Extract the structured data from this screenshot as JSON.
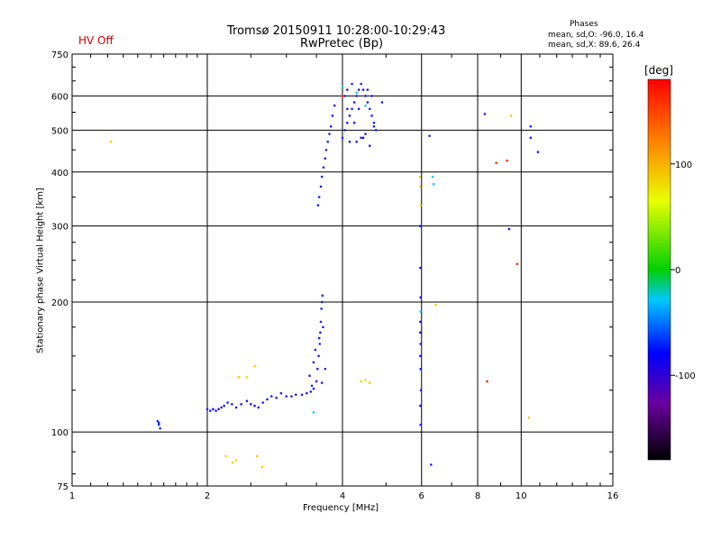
{
  "header": {
    "status": "HV Off",
    "title_line1": "Tromsø 20150911 10:28:00-10:29:43",
    "title_line2": "RwPretec (Bp)",
    "phases_title": "Phases",
    "phases_line1": "mean, sd,O: -96.0, 16.4",
    "phases_line2": "mean, sd,X:  89.6, 26.4"
  },
  "colors": {
    "status": "#cc0000",
    "blue": "#1a1aff",
    "cyan": "#00c8ff",
    "yellow": "#f0d000",
    "red": "#ff2000"
  },
  "chart_data": {
    "type": "scatter",
    "title": "Tromsø 20150911 10:28:00-10:29:43",
    "subtitle": "RwPretec (Bp)",
    "xlabel": "Frequency [MHz]",
    "ylabel": "Stationary phase Virtual Height [km]",
    "xscale": "log",
    "yscale": "log",
    "xlim": [
      1,
      16
    ],
    "ylim": [
      75,
      750
    ],
    "xticks": [
      1,
      2,
      4,
      6,
      8,
      10,
      16
    ],
    "xtick_labels": [
      "1",
      "2",
      "4",
      "6",
      "8",
      "10",
      "16"
    ],
    "yticks": [
      75,
      100,
      200,
      300,
      400,
      500,
      600,
      750
    ],
    "ytick_labels": [
      "75",
      "100",
      "200",
      "300",
      "400",
      "500",
      "600",
      "750"
    ],
    "grid": true,
    "colorbar": {
      "label": "[deg]",
      "range": [
        -180,
        180
      ],
      "ticks": [
        100,
        0,
        -100
      ],
      "tick_labels": [
        "100",
        "0",
        "-100"
      ]
    },
    "series": [
      {
        "color": "#1a1aff",
        "points": [
          [
            1.55,
            106
          ],
          [
            1.56,
            104
          ],
          [
            1.57,
            102
          ],
          [
            1.56,
            105
          ],
          [
            2.0,
            113
          ],
          [
            2.03,
            112
          ],
          [
            2.06,
            113
          ],
          [
            2.09,
            112
          ],
          [
            2.12,
            113
          ],
          [
            2.15,
            114
          ],
          [
            2.18,
            115
          ],
          [
            2.22,
            117
          ],
          [
            2.27,
            116
          ],
          [
            2.32,
            114
          ],
          [
            2.38,
            116
          ],
          [
            2.45,
            118
          ],
          [
            2.5,
            116
          ],
          [
            2.55,
            115
          ],
          [
            2.6,
            114
          ],
          [
            2.66,
            117
          ],
          [
            2.72,
            119
          ],
          [
            2.78,
            121
          ],
          [
            2.85,
            120
          ],
          [
            2.92,
            123
          ],
          [
            3.0,
            121
          ],
          [
            3.08,
            121
          ],
          [
            3.15,
            122
          ],
          [
            3.25,
            122
          ],
          [
            3.33,
            123
          ],
          [
            3.4,
            124
          ],
          [
            3.45,
            126
          ],
          [
            3.5,
            131
          ],
          [
            3.52,
            140
          ],
          [
            3.54,
            150
          ],
          [
            3.56,
            160
          ],
          [
            3.57,
            170
          ],
          [
            3.58,
            180
          ],
          [
            3.59,
            193
          ],
          [
            3.6,
            200
          ],
          [
            3.61,
            207
          ],
          [
            3.42,
            128
          ],
          [
            3.38,
            135
          ],
          [
            3.45,
            145
          ],
          [
            3.48,
            155
          ],
          [
            3.55,
            165
          ],
          [
            3.62,
            175
          ],
          [
            3.6,
            130
          ],
          [
            3.66,
            140
          ],
          [
            3.53,
            335
          ],
          [
            3.55,
            350
          ],
          [
            3.58,
            370
          ],
          [
            3.6,
            390
          ],
          [
            3.63,
            410
          ],
          [
            3.66,
            430
          ],
          [
            3.68,
            450
          ],
          [
            3.71,
            470
          ],
          [
            3.74,
            490
          ],
          [
            3.77,
            510
          ],
          [
            3.8,
            540
          ],
          [
            3.84,
            570
          ],
          [
            4.0,
            480
          ],
          [
            4.05,
            500
          ],
          [
            4.1,
            520
          ],
          [
            4.15,
            540
          ],
          [
            4.2,
            560
          ],
          [
            4.25,
            580
          ],
          [
            4.3,
            600
          ],
          [
            4.35,
            620
          ],
          [
            4.4,
            640
          ],
          [
            4.45,
            620
          ],
          [
            4.5,
            600
          ],
          [
            4.55,
            580
          ],
          [
            4.6,
            560
          ],
          [
            4.65,
            540
          ],
          [
            4.7,
            520
          ],
          [
            4.75,
            500
          ],
          [
            4.05,
            600
          ],
          [
            4.1,
            620
          ],
          [
            4.2,
            640
          ],
          [
            4.3,
            470
          ],
          [
            4.4,
            480
          ],
          [
            4.5,
            490
          ],
          [
            4.6,
            460
          ],
          [
            4.7,
            510
          ],
          [
            4.9,
            580
          ],
          [
            4.1,
            560
          ],
          [
            4.15,
            470
          ],
          [
            4.25,
            520
          ],
          [
            4.35,
            560
          ],
          [
            4.45,
            480
          ],
          [
            4.55,
            620
          ],
          [
            4.65,
            600
          ],
          [
            5.95,
            300
          ],
          [
            5.96,
            240
          ],
          [
            5.97,
            205
          ],
          [
            5.96,
            180
          ],
          [
            5.96,
            170
          ],
          [
            5.97,
            160
          ],
          [
            5.96,
            150
          ],
          [
            5.97,
            140
          ],
          [
            5.98,
            125
          ],
          [
            5.96,
            115
          ],
          [
            5.97,
            104
          ],
          [
            6.25,
            485
          ],
          [
            6.3,
            84
          ],
          [
            8.3,
            545
          ],
          [
            9.4,
            295
          ],
          [
            10.5,
            480
          ],
          [
            10.5,
            510
          ],
          [
            10.9,
            445
          ]
        ]
      },
      {
        "color": "#00c8ff",
        "points": [
          [
            3.45,
            111
          ],
          [
            5.97,
            190
          ],
          [
            6.35,
            390
          ],
          [
            6.38,
            375
          ],
          [
            4.0,
            630
          ],
          [
            4.3,
            610
          ],
          [
            4.5,
            570
          ]
        ]
      },
      {
        "color": "#f0d000",
        "points": [
          [
            1.22,
            470
          ],
          [
            2.2,
            88
          ],
          [
            2.28,
            85
          ],
          [
            2.32,
            86
          ],
          [
            2.35,
            134
          ],
          [
            2.45,
            134
          ],
          [
            2.55,
            142
          ],
          [
            2.58,
            88
          ],
          [
            2.65,
            83
          ],
          [
            4.4,
            131
          ],
          [
            4.5,
            132
          ],
          [
            4.6,
            130
          ],
          [
            5.95,
            390
          ],
          [
            5.96,
            370
          ],
          [
            5.97,
            335
          ],
          [
            6.45,
            197
          ],
          [
            9.5,
            540
          ],
          [
            10.4,
            108
          ]
        ]
      },
      {
        "color": "#ff2000",
        "points": [
          [
            8.4,
            131
          ],
          [
            8.8,
            420
          ],
          [
            9.3,
            425
          ],
          [
            9.8,
            245
          ],
          [
            4.0,
            600
          ]
        ]
      }
    ]
  }
}
